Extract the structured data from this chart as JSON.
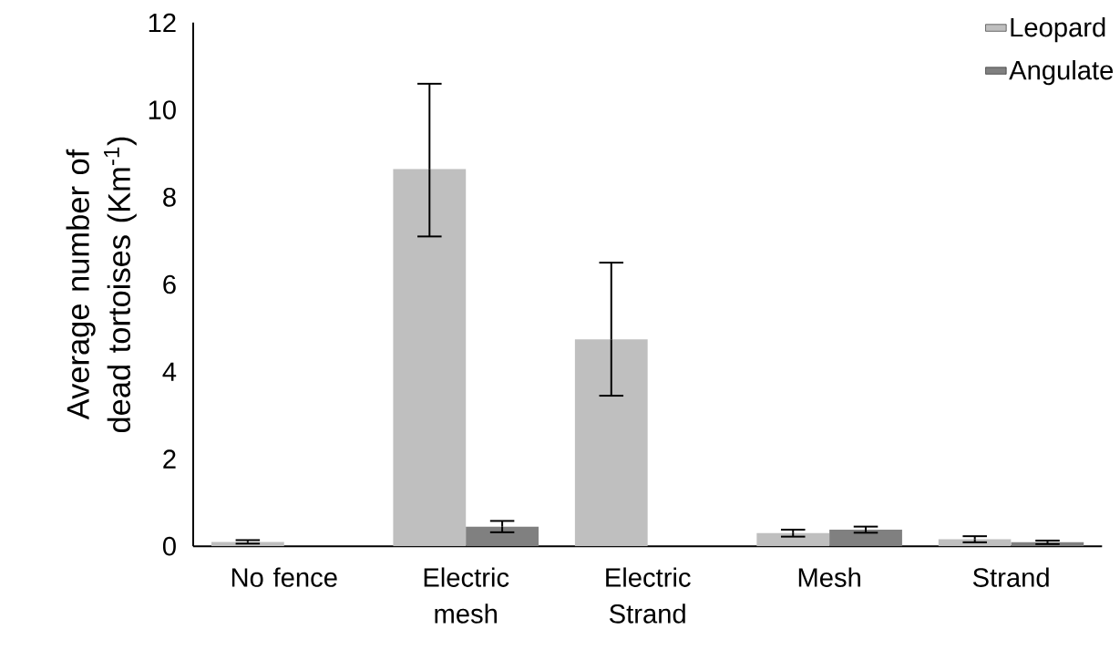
{
  "chart_data": {
    "type": "bar",
    "ylabel": "Average number of dead tortoises (Km$^{-1}$)",
    "categories": [
      "No fence",
      "Electric mesh",
      "Electric Strand",
      "Mesh",
      "Strand"
    ],
    "series": [
      {
        "name": "Leopard",
        "color": "#bfbfbf",
        "values": [
          0.1,
          8.65,
          4.74,
          0.3,
          0.16
        ],
        "errors": [
          0.04,
          [
            7.1,
            10.6
          ],
          [
            3.45,
            6.5
          ],
          0.08,
          0.07
        ]
      },
      {
        "name": "Angulate",
        "color": "#808080",
        "values": [
          null,
          0.45,
          null,
          0.38,
          0.09
        ],
        "errors": [
          null,
          0.13,
          null,
          0.07,
          0.04
        ]
      }
    ],
    "ylim": [
      0,
      12
    ],
    "yticks": [
      0,
      2,
      4,
      6,
      8,
      10,
      12
    ],
    "legend": "top right",
    "grid": false
  }
}
